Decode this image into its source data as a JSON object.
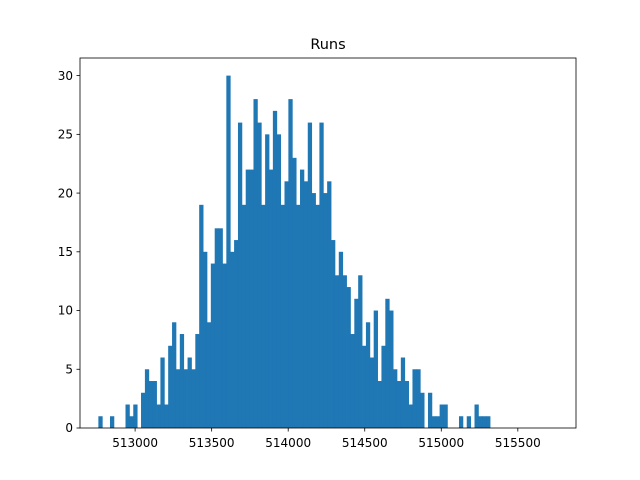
{
  "chart_data": {
    "type": "bar",
    "title": "Runs",
    "xlabel": "",
    "ylabel": "",
    "xlim": [
      512640,
      515880
    ],
    "ylim": [
      0,
      31.5
    ],
    "grid": false,
    "bar_color": "#1f77b4",
    "x_ticks": [
      513000,
      513500,
      514000,
      514500,
      515000,
      515500
    ],
    "y_ticks": [
      0,
      5,
      10,
      15,
      20,
      25,
      30
    ],
    "bin_start": 512760,
    "bin_width": 25.33,
    "counts": [
      1,
      0,
      0,
      1,
      0,
      0,
      0,
      2,
      1,
      2,
      0,
      3,
      5,
      4,
      4,
      2,
      6,
      2,
      7,
      9,
      5,
      8,
      5,
      6,
      5,
      8,
      19,
      15,
      9,
      14,
      17,
      17,
      14,
      30,
      15,
      16,
      26,
      19,
      22,
      22,
      28,
      26,
      19,
      25,
      22,
      27,
      25,
      19,
      21,
      28,
      23,
      19,
      22,
      21,
      26,
      20,
      19,
      26,
      20,
      21,
      16,
      13,
      15,
      13,
      12,
      8,
      11,
      13,
      7,
      9,
      6,
      10,
      4,
      7,
      11,
      10,
      5,
      4,
      6,
      4,
      2,
      5,
      5,
      3,
      0,
      3,
      1,
      1,
      2,
      2,
      0,
      0,
      0,
      1,
      0,
      1,
      0,
      2,
      1,
      1,
      1
    ]
  }
}
